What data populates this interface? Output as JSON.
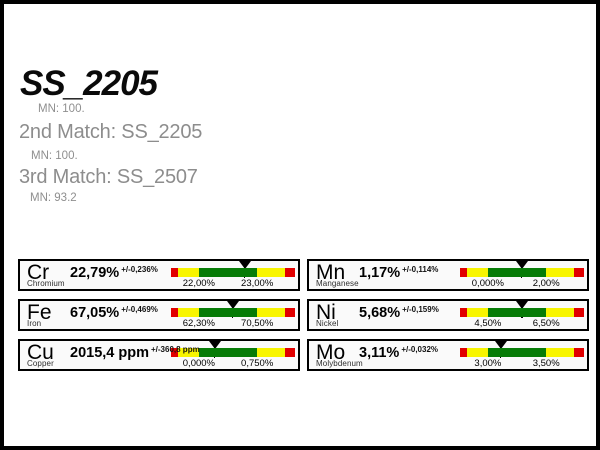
{
  "matches": {
    "best": {
      "grade": "SS_2205",
      "mn": "MN: 100."
    },
    "second": {
      "label": "2nd Match: SS_2205",
      "mn": "MN: 100."
    },
    "third": {
      "label": "3rd Match: SS_2507",
      "mn": "MN: 93.2"
    }
  },
  "gauge": {
    "segments": [
      {
        "color": "red",
        "pct": 6
      },
      {
        "color": "yellow",
        "pct": 16.5
      },
      {
        "color": "green",
        "pct": 47
      },
      {
        "color": "yellow",
        "pct": 22.5
      },
      {
        "color": "red",
        "pct": 8
      }
    ],
    "green_start_pct": 22.5,
    "green_width_pct": 47,
    "colors": {
      "red": "#e10000",
      "yellow": "#f8f500",
      "green": "#077c07"
    }
  },
  "elements": [
    {
      "symbol": "Cr",
      "name": "Chromium",
      "value_text": "22,79%",
      "tolerance_text": "+/-0,236%",
      "range_min_label": "22,00%",
      "range_max_label": "23,00%",
      "value_numeric": 22.79,
      "range_min": 22.0,
      "range_max": 23.0
    },
    {
      "symbol": "Mn",
      "name": "Manganese",
      "value_text": "1,17%",
      "tolerance_text": "+/-0,114%",
      "range_min_label": "0,000%",
      "range_max_label": "2,00%",
      "value_numeric": 1.17,
      "range_min": 0.0,
      "range_max": 2.0
    },
    {
      "symbol": "Fe",
      "name": "Iron",
      "value_text": "67,05%",
      "tolerance_text": "+/-0,469%",
      "range_min_label": "62,30%",
      "range_max_label": "70,50%",
      "value_numeric": 67.05,
      "range_min": 62.3,
      "range_max": 70.5
    },
    {
      "symbol": "Ni",
      "name": "Nickel",
      "value_text": "5,68%",
      "tolerance_text": "+/-0,159%",
      "range_min_label": "4,50%",
      "range_max_label": "6,50%",
      "value_numeric": 5.68,
      "range_min": 4.5,
      "range_max": 6.5
    },
    {
      "symbol": "Cu",
      "name": "Copper",
      "value_text": "2015,4 ppm",
      "tolerance_text": "+/-360,8 ppm",
      "range_min_label": "0,000%",
      "range_max_label": "0,750%",
      "value_numeric": 0.20154,
      "range_min": 0.0,
      "range_max": 0.75
    },
    {
      "symbol": "Mo",
      "name": "Molybdenum",
      "value_text": "3,11%",
      "tolerance_text": "+/-0,032%",
      "range_min_label": "3,00%",
      "range_max_label": "3,50%",
      "value_numeric": 3.11,
      "range_min": 3.0,
      "range_max": 3.5
    }
  ]
}
